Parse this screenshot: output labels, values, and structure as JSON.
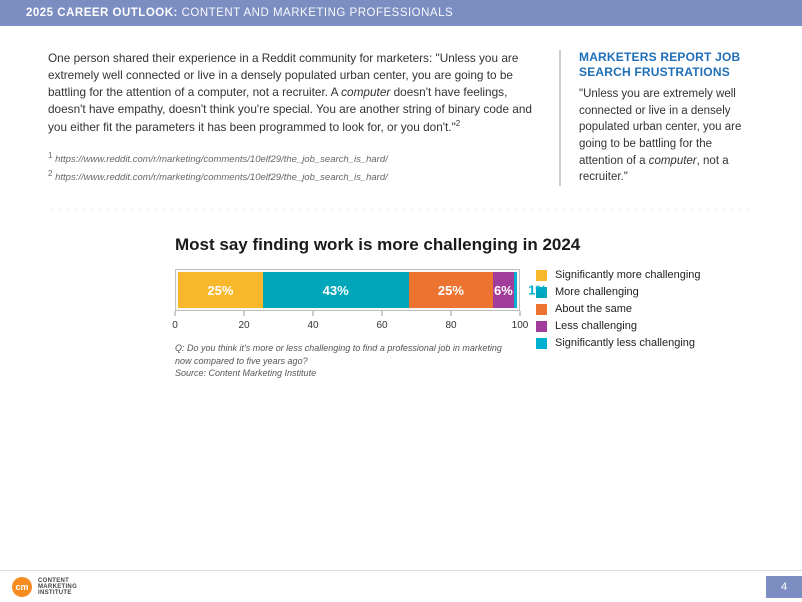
{
  "header": {
    "title_bold": "2025 CAREER OUTLOOK:",
    "title_light": "CONTENT AND MARKETING PROFESSIONALS",
    "background_color": "#7c8dc2",
    "text_color": "#ffffff"
  },
  "body": {
    "paragraph_pre": "One person shared their experience in a Reddit community for marketers: \"Unless you are extremely well connected or live in a densely populated urban center, you are going to be battling for the attention of a computer, not a recruiter. A ",
    "paragraph_em": "computer",
    "paragraph_post": " doesn't have feelings, doesn't have empathy, doesn't think you're special. You are another string of binary code and you either fit the parameters it has been programmed to look for, or you don't.\"",
    "superscript": "2",
    "ref1_sup": "1",
    "ref1_text": "https://www.reddit.com/r/marketing/comments/10elf29/the_job_search_is_hard/",
    "ref2_sup": "2",
    "ref2_text": "https://www.reddit.com/r/marketing/comments/10elf29/the_job_search_is_hard/"
  },
  "callout": {
    "title": "MARKETERS REPORT JOB SEARCH FRUSTRATIONS",
    "title_color": "#1e6fb8",
    "quote_pre": "\"Unless you are extremely well connected or live in a densely populated urban center, you are going to be battling for the attention of a ",
    "quote_em": "computer",
    "quote_post": ", not a recruiter.\""
  },
  "chart": {
    "type": "stacked-bar-horizontal",
    "title": "Most say finding work is more challenging in 2024",
    "xlim": [
      0,
      100
    ],
    "xtick_step": 20,
    "xticks": [
      "0",
      "20",
      "40",
      "60",
      "80",
      "100"
    ],
    "segments": [
      {
        "label": "Significantly more challenging",
        "value": 25,
        "display": "25%",
        "color": "#f9b82b"
      },
      {
        "label": "More challenging",
        "value": 43,
        "display": "43%",
        "color": "#00a6ba"
      },
      {
        "label": "About the same",
        "value": 25,
        "display": "25%",
        "color": "#ed7331"
      },
      {
        "label": "Less challenging",
        "value": 6,
        "display": "6%",
        "color": "#a23c9a"
      },
      {
        "label": "Significantly less challenging",
        "value": 1,
        "display": "1%",
        "color": "#00b0d1"
      }
    ],
    "caption_line1": "Q: Do you think it's more or less challenging to find a professional job in marketing now compared to five years ago?",
    "caption_line2": "Source: Content Marketing Institute",
    "background_color": "#ffffff",
    "axis_color": "#999999"
  },
  "footer": {
    "logo_abbrev": "cm",
    "logo_line1": "CONTENT",
    "logo_line2": "MARKETING",
    "logo_line3": "INSTITUTE",
    "logo_bg_color": "#f68b1f",
    "page_number": "4",
    "page_bg_color": "#7c8dc2"
  }
}
